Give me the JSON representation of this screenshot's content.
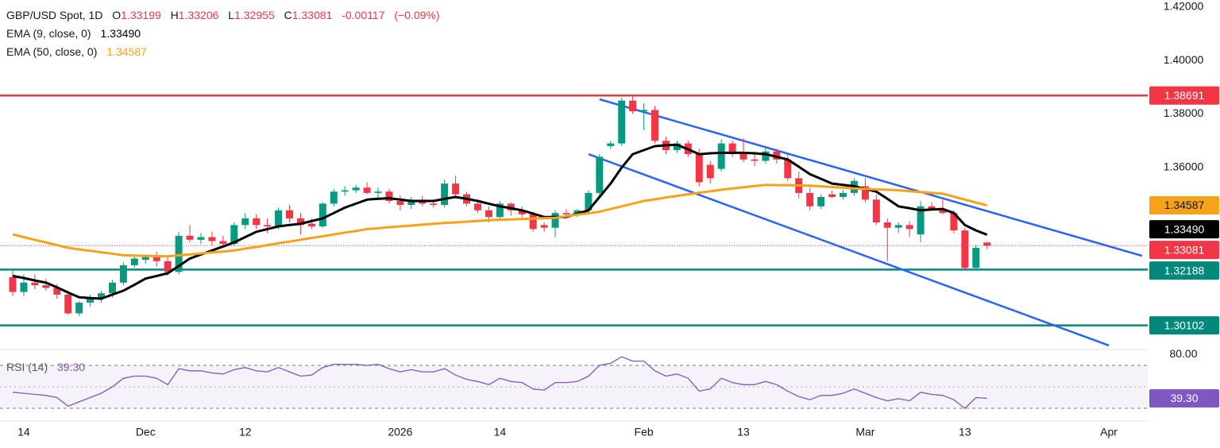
{
  "chart_data": [
    {
      "type": "candlestick",
      "legend": {
        "symbol": "GBP/USD Spot, 1D",
        "items": [
          {
            "label": "O",
            "value": "1.33199"
          },
          {
            "label": "H",
            "value": "1.33206"
          },
          {
            "label": "L",
            "value": "1.32955"
          },
          {
            "label": "C",
            "value": "1.33081"
          }
        ],
        "change": "-0.00117",
        "change_pct": "(−0.09%)",
        "value_color": "#f23645"
      },
      "categories": [
        null,
        "14",
        null,
        null,
        null,
        null,
        null,
        null,
        null,
        null,
        null,
        null,
        "Dec",
        null,
        null,
        null,
        null,
        null,
        null,
        null,
        null,
        "12",
        null,
        null,
        null,
        null,
        null,
        null,
        null,
        null,
        null,
        null,
        null,
        null,
        null,
        "2026",
        null,
        null,
        null,
        null,
        null,
        null,
        null,
        null,
        "14",
        null,
        null,
        null,
        null,
        null,
        null,
        null,
        null,
        null,
        null,
        null,
        null,
        "Feb",
        null,
        null,
        null,
        null,
        null,
        null,
        null,
        null,
        "13",
        null,
        null,
        null,
        null,
        null,
        null,
        null,
        null,
        null,
        null,
        "Mar",
        null,
        null,
        null,
        null,
        null,
        null,
        null,
        null,
        "13",
        null,
        null,
        null,
        null,
        null,
        null,
        null,
        null,
        null,
        null,
        null,
        null,
        "Apr",
        null,
        null,
        null
      ],
      "ohlc": [
        [
          1.319,
          1.3215,
          1.312,
          1.3135
        ],
        [
          1.3135,
          1.32,
          1.312,
          1.317
        ],
        [
          1.317,
          1.32,
          1.3145,
          1.316
        ],
        [
          1.316,
          1.3185,
          1.314,
          1.315
        ],
        [
          1.315,
          1.3165,
          1.311,
          1.3125
        ],
        [
          1.3125,
          1.314,
          1.305,
          1.3055
        ],
        [
          1.3055,
          1.31,
          1.3045,
          1.3095
        ],
        [
          1.3095,
          1.3125,
          1.308,
          1.311
        ],
        [
          1.311,
          1.314,
          1.3095,
          1.313
        ],
        [
          1.313,
          1.318,
          1.3115,
          1.317
        ],
        [
          1.317,
          1.3245,
          1.316,
          1.3235
        ],
        [
          1.3235,
          1.3275,
          1.3225,
          1.326
        ],
        [
          1.3255,
          1.3275,
          1.324,
          1.3265
        ],
        [
          1.3265,
          1.3285,
          1.323,
          1.325
        ],
        [
          1.325,
          1.327,
          1.3195,
          1.321
        ],
        [
          1.321,
          1.336,
          1.32,
          1.3345
        ],
        [
          1.3345,
          1.3385,
          1.332,
          1.333
        ],
        [
          1.333,
          1.3355,
          1.3315,
          1.334
        ],
        [
          1.334,
          1.336,
          1.331,
          1.3325
        ],
        [
          1.3325,
          1.3345,
          1.33,
          1.3315
        ],
        [
          1.3315,
          1.3395,
          1.3305,
          1.3385
        ],
        [
          1.3385,
          1.343,
          1.337,
          1.341
        ],
        [
          1.341,
          1.3425,
          1.337,
          1.3385
        ],
        [
          1.3385,
          1.341,
          1.3355,
          1.338
        ],
        [
          1.338,
          1.345,
          1.337,
          1.344
        ],
        [
          1.344,
          1.346,
          1.3395,
          1.341
        ],
        [
          1.341,
          1.343,
          1.335,
          1.3385
        ],
        [
          1.339,
          1.341,
          1.337,
          1.338
        ],
        [
          1.338,
          1.347,
          1.3375,
          1.3465
        ],
        [
          1.3465,
          1.352,
          1.3455,
          1.351
        ],
        [
          1.351,
          1.353,
          1.3495,
          1.3515
        ],
        [
          1.3515,
          1.3535,
          1.3505,
          1.3525
        ],
        [
          1.3525,
          1.3545,
          1.35,
          1.3505
        ],
        [
          1.3505,
          1.3525,
          1.3485,
          1.351
        ],
        [
          1.351,
          1.352,
          1.3465,
          1.3475
        ],
        [
          1.3475,
          1.3495,
          1.344,
          1.346
        ],
        [
          1.346,
          1.349,
          1.3445,
          1.348
        ],
        [
          1.348,
          1.3495,
          1.3455,
          1.3465
        ],
        [
          1.3465,
          1.348,
          1.345,
          1.346
        ],
        [
          1.346,
          1.3555,
          1.345,
          1.354
        ],
        [
          1.354,
          1.357,
          1.349,
          1.35
        ],
        [
          1.35,
          1.351,
          1.3455,
          1.3465
        ],
        [
          1.3465,
          1.348,
          1.343,
          1.344
        ],
        [
          1.344,
          1.3455,
          1.3395,
          1.3415
        ],
        [
          1.3415,
          1.3475,
          1.3405,
          1.3465
        ],
        [
          1.3465,
          1.347,
          1.342,
          1.344
        ],
        [
          1.344,
          1.3455,
          1.3415,
          1.3425
        ],
        [
          1.3425,
          1.3435,
          1.336,
          1.337
        ],
        [
          1.3385,
          1.3395,
          1.336,
          1.3375
        ],
        [
          1.3375,
          1.344,
          1.334,
          1.343
        ],
        [
          1.343,
          1.3445,
          1.342,
          1.3425
        ],
        [
          1.3425,
          1.3445,
          1.3415,
          1.344
        ],
        [
          1.344,
          1.3515,
          1.343,
          1.3505
        ],
        [
          1.3505,
          1.365,
          1.3495,
          1.364
        ],
        [
          1.368,
          1.37,
          1.367,
          1.369
        ],
        [
          1.369,
          1.386,
          1.368,
          1.385
        ],
        [
          1.385,
          1.3869,
          1.38,
          1.381
        ],
        [
          1.381,
          1.384,
          1.374,
          1.3815
        ],
        [
          1.3815,
          1.383,
          1.369,
          1.37
        ],
        [
          1.37,
          1.3715,
          1.365,
          1.3665
        ],
        [
          1.3665,
          1.37,
          1.3655,
          1.369
        ],
        [
          1.369,
          1.37,
          1.364,
          1.365
        ],
        [
          1.365,
          1.367,
          1.353,
          1.3545
        ],
        [
          1.361,
          1.3625,
          1.354,
          1.356
        ],
        [
          1.3595,
          1.3705,
          1.3585,
          1.369
        ],
        [
          1.369,
          1.37,
          1.364,
          1.365
        ],
        [
          1.365,
          1.371,
          1.362,
          1.363
        ],
        [
          1.363,
          1.366,
          1.3605,
          1.3625
        ],
        [
          1.3625,
          1.3675,
          1.3615,
          1.366
        ],
        [
          1.366,
          1.367,
          1.3615,
          1.363
        ],
        [
          1.363,
          1.365,
          1.355,
          1.356
        ],
        [
          1.356,
          1.3585,
          1.3485,
          1.3505
        ],
        [
          1.3505,
          1.3525,
          1.344,
          1.3455
        ],
        [
          1.3455,
          1.35,
          1.3445,
          1.349
        ],
        [
          1.35,
          1.3515,
          1.3485,
          1.349
        ],
        [
          1.349,
          1.3515,
          1.348,
          1.3505
        ],
        [
          1.3505,
          1.356,
          1.3495,
          1.355
        ],
        [
          1.353,
          1.356,
          1.347,
          1.348
        ],
        [
          1.348,
          1.35,
          1.3385,
          1.3395
        ],
        [
          1.3395,
          1.341,
          1.325,
          1.3375
        ],
        [
          1.3375,
          1.3395,
          1.3355,
          1.3385
        ],
        [
          1.3385,
          1.34,
          1.334,
          1.337
        ],
        [
          1.335,
          1.3475,
          1.332,
          1.3455
        ],
        [
          1.3455,
          1.347,
          1.344,
          1.3445
        ],
        [
          1.3445,
          1.348,
          1.3425,
          1.343
        ],
        [
          1.343,
          1.344,
          1.3355,
          1.3365
        ],
        [
          1.3365,
          1.3375,
          1.3219,
          1.3225
        ],
        [
          1.3225,
          1.331,
          1.3215,
          1.33
        ],
        [
          1.33199,
          1.33206,
          1.32955,
          1.33081
        ],
        null,
        null,
        null,
        null,
        null,
        null,
        null,
        null,
        null,
        null,
        null,
        null,
        null,
        null
      ],
      "up_color": "#089981",
      "down_color": "#f23645",
      "series": [
        {
          "name": "EMA (9, close, 0)",
          "color": "#000000",
          "last_value_label": "1.33490",
          "values": [
            1.3195,
            1.3187,
            1.3178,
            1.317,
            1.3152,
            1.3133,
            1.3115,
            1.3112,
            1.311,
            1.3125,
            1.314,
            1.3162,
            1.3185,
            1.3195,
            1.3205,
            1.3232,
            1.326,
            1.3275,
            1.329,
            1.3305,
            1.332,
            1.334,
            1.336,
            1.337,
            1.338,
            1.3385,
            1.339,
            1.34,
            1.341,
            1.343,
            1.345,
            1.3465,
            1.348,
            1.3483,
            1.3485,
            1.348,
            1.3475,
            1.3475,
            1.3475,
            1.3483,
            1.349,
            1.3483,
            1.3475,
            1.3465,
            1.3455,
            1.3448,
            1.344,
            1.3428,
            1.3415,
            1.3415,
            1.3415,
            1.3428,
            1.344,
            1.349,
            1.354,
            1.36,
            1.365,
            1.3665,
            1.368,
            1.3683,
            1.3685,
            1.3668,
            1.365,
            1.3653,
            1.3655,
            1.3655,
            1.3655,
            1.3653,
            1.365,
            1.364,
            1.363,
            1.3603,
            1.3575,
            1.3558,
            1.354,
            1.3535,
            1.353,
            1.352,
            1.351,
            1.3483,
            1.3455,
            1.3448,
            1.344,
            1.3443,
            1.3445,
            1.343,
            1.3385,
            1.3365,
            1.3349,
            null,
            null,
            null,
            null,
            null,
            null,
            null,
            null,
            null,
            null,
            null,
            null,
            null,
            null
          ]
        },
        {
          "name": "EMA (50, close, 0)",
          "color": "#f7a21b",
          "last_value_label": "1.34587",
          "values": [
            1.335,
            1.334,
            1.333,
            1.332,
            1.331,
            1.33,
            1.3294,
            1.3289,
            1.3283,
            1.3278,
            1.3272,
            1.3271,
            1.327,
            1.3269,
            1.3268,
            1.3272,
            1.3275,
            1.3279,
            1.3283,
            1.3286,
            1.329,
            1.3297,
            1.3303,
            1.331,
            1.3317,
            1.3323,
            1.333,
            1.3337,
            1.3343,
            1.335,
            1.3357,
            1.3363,
            1.337,
            1.3373,
            1.3377,
            1.338,
            1.3383,
            1.3387,
            1.339,
            1.3393,
            1.3395,
            1.3398,
            1.34,
            1.3403,
            1.3405,
            1.3406,
            1.3408,
            1.3409,
            1.3411,
            1.3412,
            1.3418,
            1.3424,
            1.3429,
            1.3435,
            1.3445,
            1.3455,
            1.3465,
            1.3475,
            1.3481,
            1.3488,
            1.3494,
            1.35,
            1.3506,
            1.3511,
            1.3517,
            1.3522,
            1.3526,
            1.3531,
            1.3535,
            1.3534,
            1.3534,
            1.3533,
            1.3532,
            1.353,
            1.3527,
            1.3525,
            1.3522,
            1.352,
            1.3518,
            1.3517,
            1.3515,
            1.3512,
            1.3508,
            1.3505,
            1.3502,
            1.3491,
            1.348,
            1.3469,
            1.34587,
            null,
            null,
            null,
            null,
            null,
            null,
            null,
            null,
            null,
            null,
            null,
            null,
            null,
            null
          ]
        }
      ],
      "levels": [
        {
          "value": 1.38691,
          "label": "1.38691",
          "color": "#f23645"
        },
        {
          "value": 1.32188,
          "label": "1.32188",
          "color": "#00897b"
        },
        {
          "value": 1.30102,
          "label": "1.30102",
          "color": "#00897b"
        }
      ],
      "trendlines": [
        {
          "x": [
            53,
            102
          ],
          "y": [
            1.3855,
            1.327
          ]
        },
        {
          "x": [
            52,
            99
          ],
          "y": [
            1.365,
            1.2935
          ]
        }
      ],
      "trendline_color": "#2962ff",
      "ylim": [
        1.292,
        1.4226
      ],
      "yticks": [
        {
          "value": 1.42,
          "label": "1.42000"
        },
        {
          "value": 1.4,
          "label": "1.40000"
        },
        {
          "value": 1.38,
          "label": "1.38000"
        },
        {
          "value": 1.36,
          "label": "1.36000"
        }
      ],
      "grid": false
    },
    {
      "type": "line",
      "title": "RSI (14)",
      "last_value_label": "39.30",
      "color": "#7e57c2",
      "values": [
        45,
        44,
        43,
        42,
        40,
        32,
        36,
        40,
        44,
        50,
        58,
        60,
        60,
        58,
        52,
        67,
        65,
        65,
        63,
        62,
        66,
        68,
        65,
        64,
        68,
        64,
        60,
        61,
        68,
        71,
        71,
        71,
        70,
        71,
        67,
        64,
        66,
        64,
        64,
        67,
        61,
        57,
        55,
        52,
        58,
        55,
        54,
        48,
        47,
        54,
        54,
        55,
        60,
        70,
        72,
        78,
        74,
        74,
        65,
        60,
        62,
        58,
        46,
        48,
        58,
        54,
        52,
        52,
        55,
        52,
        46,
        41,
        38,
        42,
        42,
        44,
        48,
        44,
        40,
        37,
        39,
        37,
        45,
        43,
        42,
        38,
        30,
        40,
        39.3,
        null,
        null,
        null,
        null,
        null,
        null,
        null,
        null,
        null,
        null,
        null,
        null,
        null,
        null
      ],
      "band": [
        30,
        70
      ],
      "midline": 50,
      "ylim": [
        18.2,
        84.8
      ],
      "yticks": [
        {
          "value": 80,
          "label": "80.00"
        }
      ],
      "grid": false
    }
  ]
}
